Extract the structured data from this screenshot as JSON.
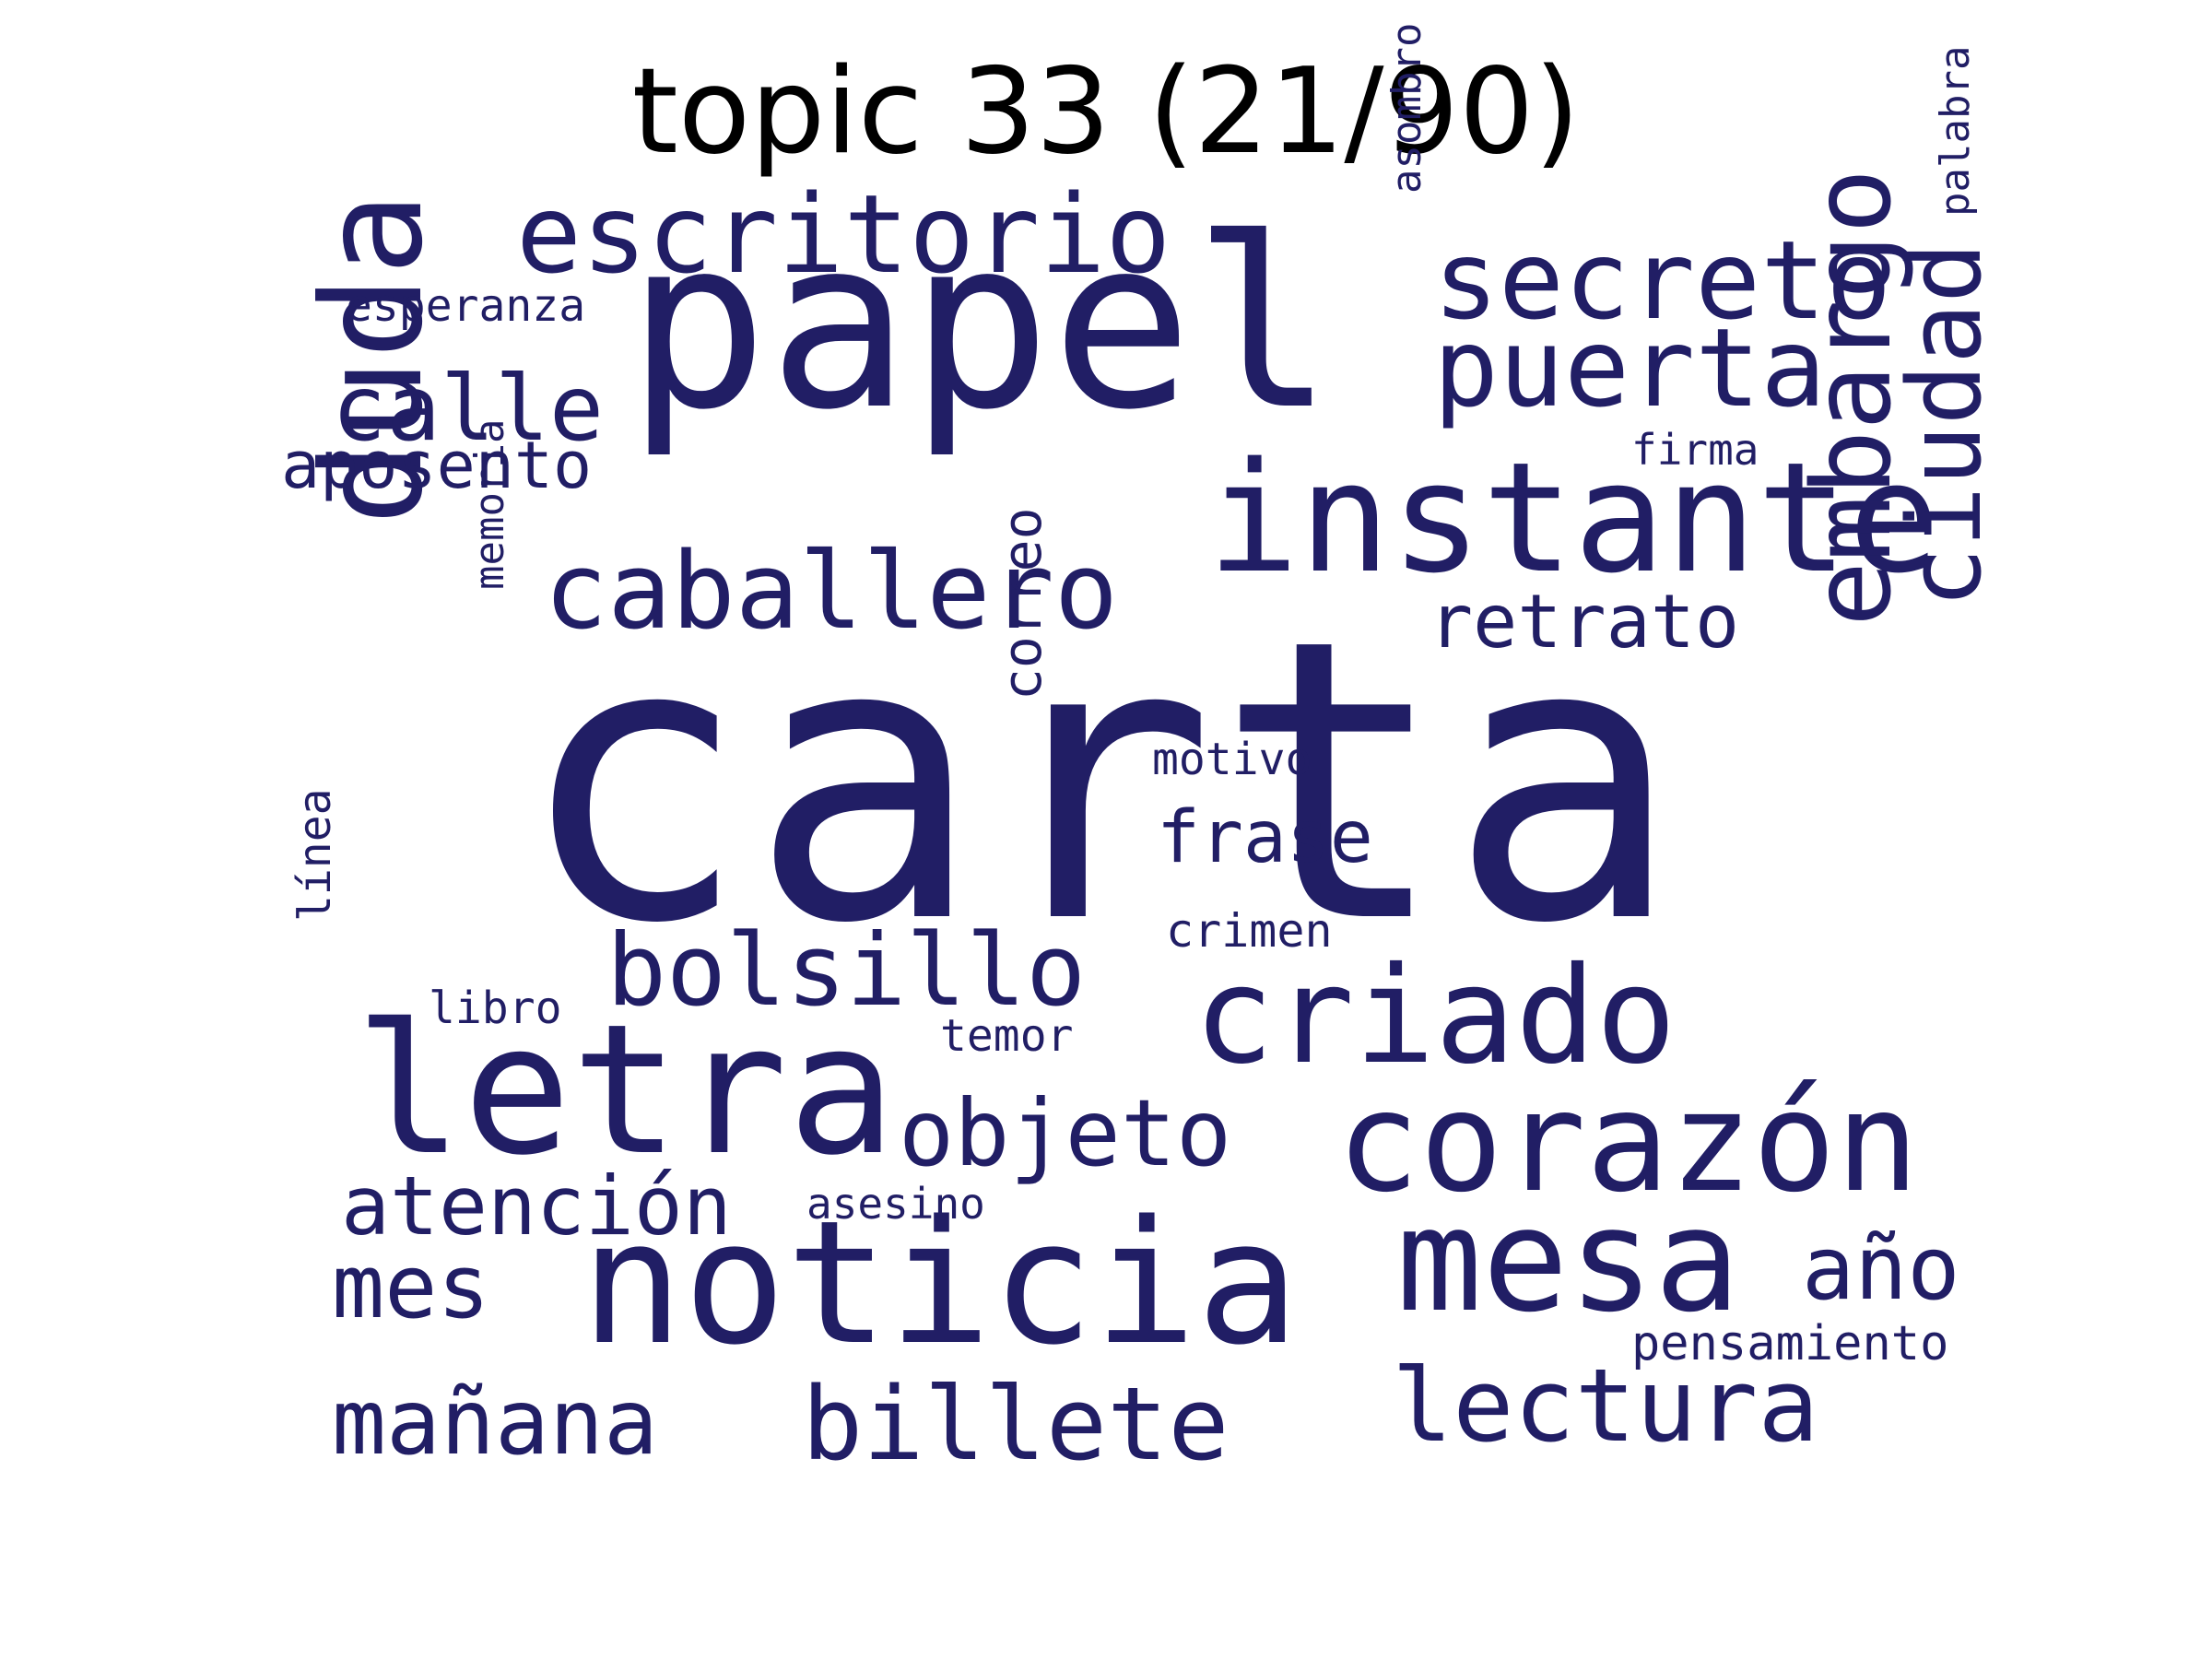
{
  "title": "topic 33 (21/90)",
  "colors": {
    "word": "#211e65",
    "background": "#ffffff",
    "title": "#000000"
  },
  "words": [
    {
      "id": "carta",
      "text": "carta"
    },
    {
      "id": "papel",
      "text": "papel"
    },
    {
      "id": "noticia",
      "text": "noticia"
    },
    {
      "id": "letra",
      "text": "letra"
    },
    {
      "id": "instante",
      "text": "instante"
    },
    {
      "id": "duda",
      "text": "duda"
    },
    {
      "id": "corazon",
      "text": "corazón"
    },
    {
      "id": "mesa",
      "text": "mesa"
    },
    {
      "id": "criado",
      "text": "criado"
    },
    {
      "id": "escritorio",
      "text": "escritorio"
    },
    {
      "id": "secreto",
      "text": "secreto"
    },
    {
      "id": "puerta",
      "text": "puerta"
    },
    {
      "id": "caballero",
      "text": "caballero"
    },
    {
      "id": "embargo",
      "text": "embargo"
    },
    {
      "id": "ciudad",
      "text": "ciudad"
    },
    {
      "id": "bolsillo",
      "text": "bolsillo"
    },
    {
      "id": "billete",
      "text": "billete"
    },
    {
      "id": "lectura",
      "text": "lectura"
    },
    {
      "id": "objeto",
      "text": "objeto"
    },
    {
      "id": "calle",
      "text": "calle"
    },
    {
      "id": "manana",
      "text": "mañana"
    },
    {
      "id": "atencion",
      "text": "atención"
    },
    {
      "id": "ano",
      "text": "año"
    },
    {
      "id": "mes",
      "text": "mes"
    },
    {
      "id": "retrato",
      "text": "retrato"
    },
    {
      "id": "frase",
      "text": "frase"
    },
    {
      "id": "aposento",
      "text": "aposento"
    },
    {
      "id": "correo",
      "text": "correo"
    },
    {
      "id": "memoria",
      "text": "memoria"
    },
    {
      "id": "pensamiento",
      "text": "pensamiento"
    },
    {
      "id": "esperanza",
      "text": "esperanza"
    },
    {
      "id": "asombro",
      "text": "asombro"
    },
    {
      "id": "palabra",
      "text": "palabra"
    },
    {
      "id": "motivo",
      "text": "motivo"
    },
    {
      "id": "crimen",
      "text": "crimen"
    },
    {
      "id": "libro",
      "text": "libro"
    },
    {
      "id": "linea",
      "text": "línea"
    },
    {
      "id": "temor",
      "text": "temor"
    },
    {
      "id": "asesino",
      "text": "asesino"
    },
    {
      "id": "firma",
      "text": "firma"
    }
  ]
}
